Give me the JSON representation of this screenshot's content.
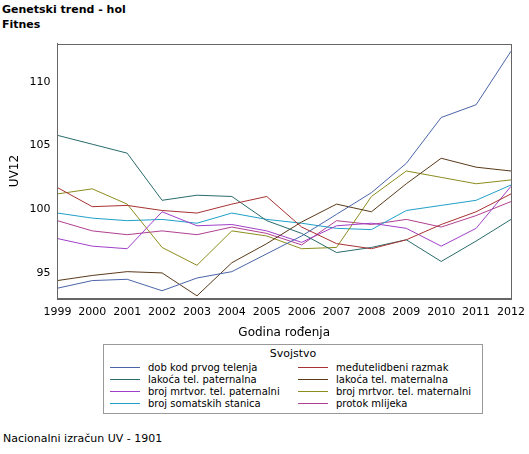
{
  "chart_data": {
    "type": "line",
    "title": "Genetski trend - hol",
    "subtitle": "Fitnes",
    "x_label": "Godina rođenja",
    "y_label": "UV12",
    "legend_title": "Svojstvo",
    "legend": "bottom",
    "annotations": [
      "Nacionalni izračun UV - 1901"
    ],
    "categories": [
      "1999",
      "2000",
      "2001",
      "2002",
      "2003",
      "2004",
      "2005",
      "2006",
      "2007",
      "2008",
      "2009",
      "2010",
      "2011",
      "2012"
    ],
    "ylim": [
      93,
      113
    ],
    "yticks": [
      95,
      100,
      105,
      110
    ],
    "grid": false,
    "series": [
      {
        "name": "dob kod prvog telenja",
        "color": "#4a64a8",
        "values": [
          93.8,
          94.4,
          94.5,
          93.6,
          94.6,
          95.1,
          96.5,
          97.9,
          99.6,
          101.3,
          103.6,
          107.2,
          108.2,
          112.4
        ]
      },
      {
        "name": "međutelidbeni razmak",
        "color": "#a83232",
        "values": [
          101.7,
          100.2,
          100.3,
          99.9,
          99.7,
          100.4,
          101.0,
          98.6,
          97.3,
          96.9,
          97.6,
          98.8,
          99.8,
          101.2
        ]
      },
      {
        "name": "lakoća tel. paternalna",
        "color": "#2a6b6b",
        "values": [
          105.8,
          105.1,
          104.4,
          100.7,
          101.1,
          101.0,
          99.1,
          98.1,
          96.6,
          97.0,
          97.6,
          95.9,
          97.5,
          99.2
        ]
      },
      {
        "name": "lakoća tel. maternalna",
        "color": "#5a3a1a",
        "values": [
          94.4,
          94.8,
          95.1,
          95.0,
          93.2,
          95.8,
          97.3,
          99.0,
          100.4,
          99.8,
          102.0,
          104.0,
          103.3,
          103.0
        ]
      },
      {
        "name": "broj mrtvor. tel. paternalni",
        "color": "#a040c8",
        "values": [
          97.7,
          97.1,
          96.9,
          99.8,
          98.7,
          98.8,
          98.3,
          97.4,
          98.7,
          98.9,
          98.5,
          97.1,
          98.5,
          101.8
        ]
      },
      {
        "name": "broj mrtvor. tel. maternalni",
        "color": "#8c8c1e",
        "values": [
          101.2,
          101.6,
          100.4,
          97.0,
          95.6,
          98.3,
          97.9,
          96.9,
          97.0,
          101.0,
          103.0,
          102.5,
          102.0,
          102.3
        ]
      },
      {
        "name": "broj somatskih stanica",
        "color": "#20a0c8",
        "values": [
          99.7,
          99.3,
          99.1,
          99.2,
          98.9,
          99.7,
          99.2,
          98.9,
          98.5,
          98.4,
          99.9,
          100.3,
          100.7,
          101.9
        ]
      },
      {
        "name": "protok mlijeka",
        "color": "#b04090",
        "values": [
          99.1,
          98.3,
          98.0,
          98.3,
          98.0,
          98.6,
          98.1,
          97.2,
          99.1,
          98.8,
          99.2,
          98.6,
          99.5,
          100.6
        ]
      }
    ]
  }
}
